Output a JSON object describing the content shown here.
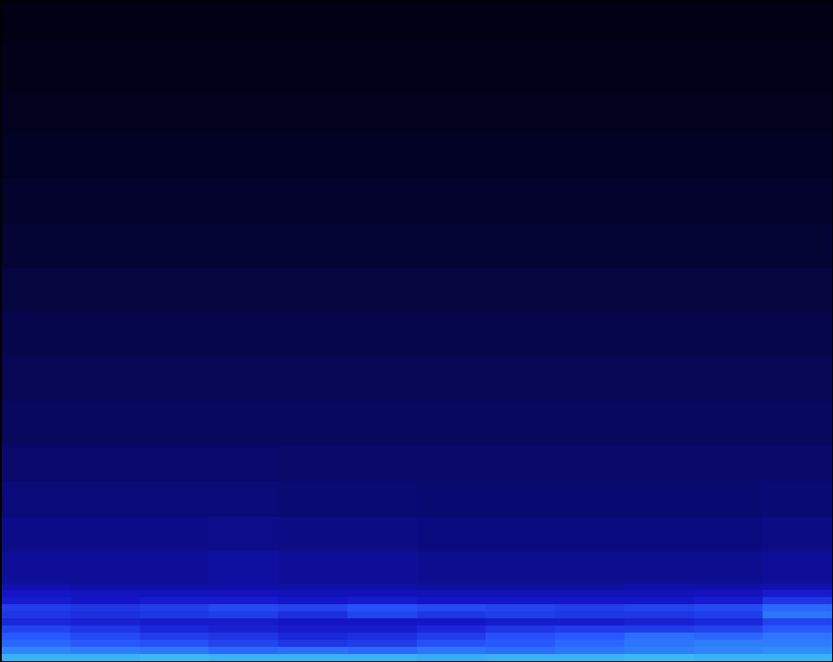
{
  "chart_data": {
    "type": "heatmap",
    "tick_labels": false,
    "xlim": [
      0,
      12
    ],
    "ylim": [
      0,
      1
    ],
    "zlim": [
      0,
      100
    ],
    "x_bins": [
      0,
      1,
      2,
      3,
      4,
      5,
      6,
      7,
      8,
      9,
      10,
      11,
      12
    ],
    "y_bins": [
      0,
      0.011,
      0.022,
      0.032,
      0.043,
      0.054,
      0.065,
      0.075,
      0.086,
      0.097,
      0.108,
      0.118,
      0.166,
      0.219,
      0.273,
      0.327,
      0.394,
      0.462,
      0.529,
      0.596,
      0.663,
      0.731,
      0.798,
      0.865,
      0.933,
      1
    ],
    "cells": [
      [
        92,
        92,
        93,
        92,
        92,
        92,
        91,
        92,
        92,
        93,
        92,
        92
      ],
      [
        86,
        85,
        84,
        82,
        83,
        82,
        84,
        83,
        84,
        85,
        86,
        87
      ],
      [
        82,
        80,
        78,
        74,
        70,
        72,
        78,
        80,
        82,
        84,
        85,
        85
      ],
      [
        80,
        76,
        72,
        70,
        66,
        68,
        72,
        78,
        80,
        83,
        82,
        84
      ],
      [
        74,
        70,
        66,
        64,
        62,
        62,
        66,
        70,
        72,
        72,
        74,
        80
      ],
      [
        66,
        64,
        62,
        62,
        60,
        60,
        60,
        62,
        62,
        64,
        66,
        74
      ],
      [
        70,
        68,
        70,
        72,
        68,
        74,
        70,
        72,
        70,
        70,
        72,
        84
      ],
      [
        72,
        70,
        72,
        76,
        74,
        78,
        76,
        74,
        72,
        74,
        76,
        82
      ],
      [
        62,
        60,
        62,
        62,
        60,
        62,
        60,
        60,
        60,
        60,
        62,
        70
      ],
      [
        60,
        58,
        58,
        58,
        56,
        56,
        56,
        56,
        56,
        56,
        58,
        62
      ],
      [
        54,
        52,
        52,
        52,
        52,
        52,
        50,
        50,
        50,
        52,
        52,
        54
      ],
      [
        48,
        48,
        48,
        50,
        48,
        48,
        46,
        46,
        46,
        46,
        46,
        48
      ],
      [
        44,
        44,
        44,
        45,
        43,
        43,
        42,
        42,
        42,
        42,
        42,
        43
      ],
      [
        40,
        40,
        40,
        40,
        39,
        39,
        38,
        38,
        38,
        38,
        38,
        39
      ],
      [
        36,
        36,
        36,
        36,
        35,
        35,
        35,
        35,
        35,
        35,
        35,
        35
      ],
      [
        32,
        32,
        32,
        32,
        32,
        32,
        32,
        32,
        32,
        32,
        32,
        32
      ],
      [
        29,
        29,
        29,
        29,
        29,
        29,
        29,
        29,
        29,
        29,
        29,
        29
      ],
      [
        26,
        26,
        26,
        26,
        26,
        26,
        26,
        26,
        26,
        26,
        26,
        26
      ],
      [
        22,
        22,
        22,
        22,
        22,
        22,
        22,
        22,
        22,
        22,
        22,
        22
      ],
      [
        18,
        18,
        18,
        18,
        18,
        18,
        18,
        18,
        18,
        18,
        18,
        18
      ],
      [
        15,
        15,
        15,
        15,
        15,
        15,
        15,
        15,
        15,
        15,
        15,
        15
      ],
      [
        12,
        12,
        12,
        12,
        12,
        12,
        12,
        12,
        12,
        12,
        12,
        12
      ],
      [
        9,
        9,
        9,
        9,
        9,
        9,
        9,
        9,
        9,
        9,
        9,
        9
      ],
      [
        7,
        7,
        7,
        7,
        7,
        7,
        7,
        7,
        7,
        7,
        7,
        7
      ],
      [
        5,
        5,
        5,
        5,
        5,
        5,
        5,
        5,
        5,
        5,
        5,
        5
      ]
    ]
  }
}
